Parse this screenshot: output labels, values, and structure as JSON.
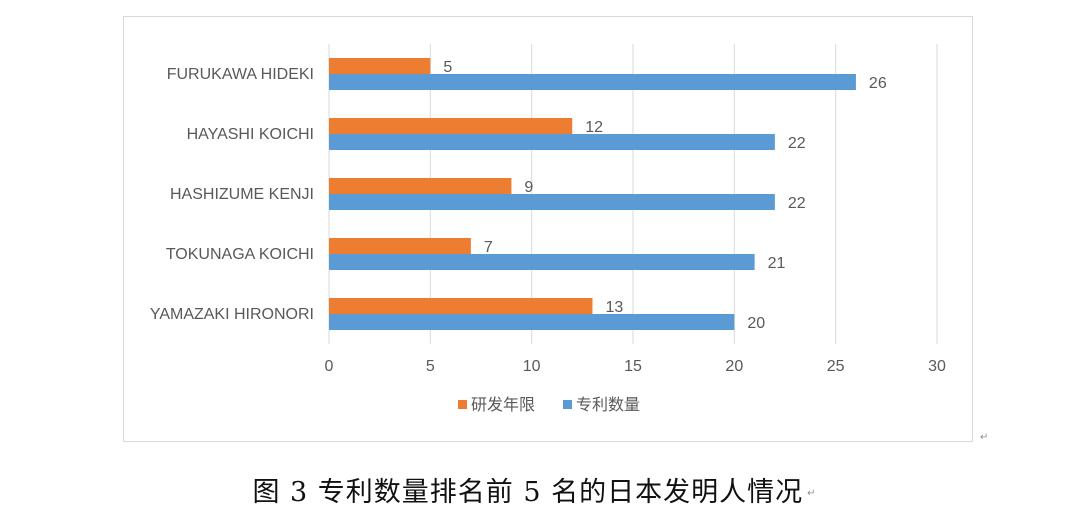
{
  "chart_data": {
    "type": "bar",
    "orientation": "horizontal",
    "categories": [
      "FURUKAWA HIDEKI",
      "HAYASHI KOICHI",
      "HASHIZUME KENJI",
      "TOKUNAGA KOICHI",
      "YAMAZAKI HIRONORI"
    ],
    "series": [
      {
        "name": "研发年限",
        "color": "#ed7d31",
        "values": [
          5,
          12,
          9,
          7,
          13
        ]
      },
      {
        "name": "专利数量",
        "color": "#5b9bd5",
        "values": [
          26,
          22,
          22,
          21,
          20
        ]
      }
    ],
    "xlim": [
      0,
      30
    ],
    "xticks": [
      "0",
      "5",
      "10",
      "15",
      "20",
      "25",
      "30"
    ],
    "grid": true,
    "legend_position": "bottom",
    "data_labels": true
  },
  "caption": {
    "text": "图 3  专利数量排名前 5 名的日本发明人情况",
    "return_mark": "↵"
  },
  "chart_return_mark": "↵"
}
